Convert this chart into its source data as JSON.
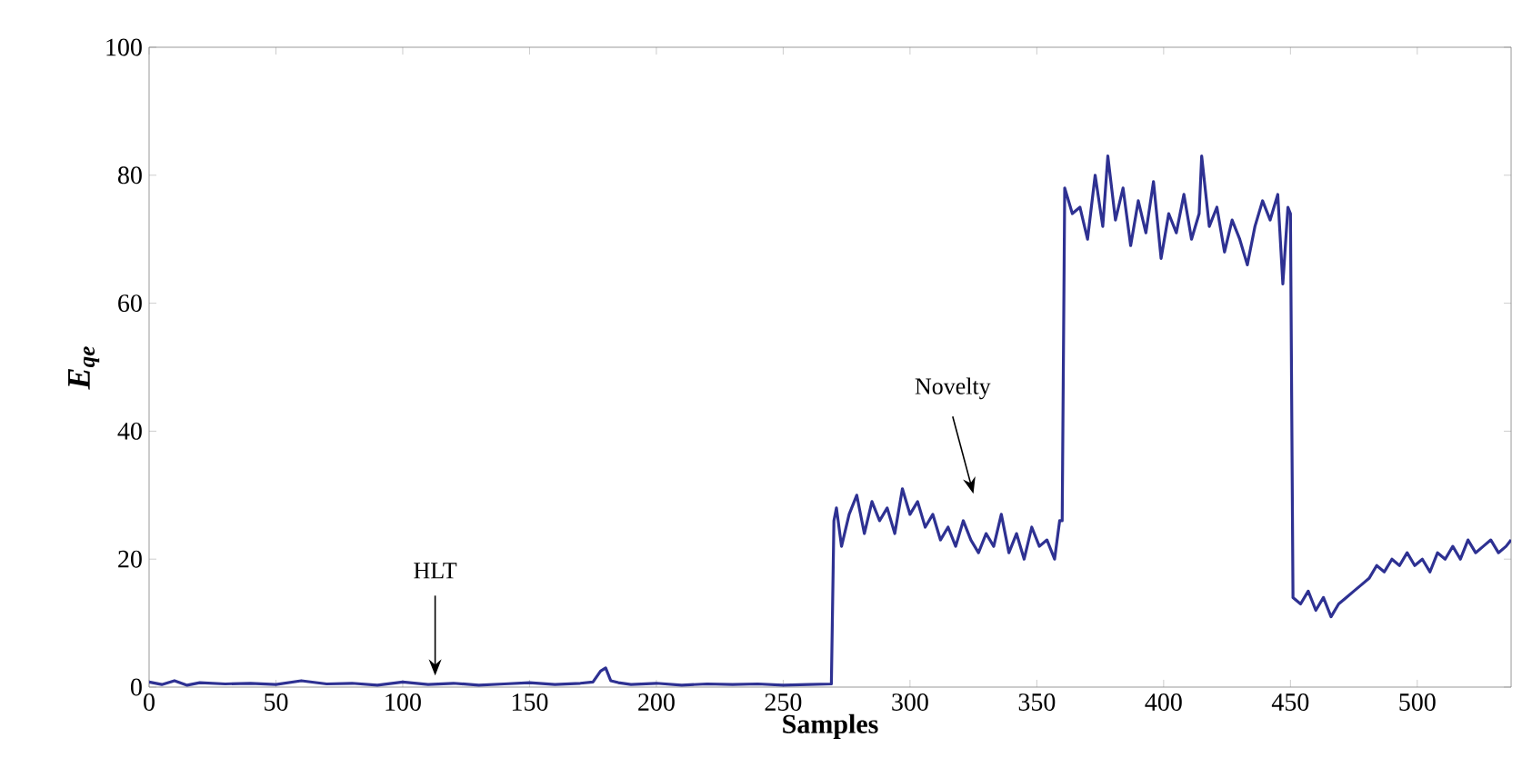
{
  "chart_data": {
    "type": "line",
    "xlabel": "Samples",
    "ylabel": "E$_{qe}$",
    "xlim": [
      0,
      537
    ],
    "ylim": [
      0,
      100
    ],
    "xticks": [
      0,
      50,
      100,
      150,
      200,
      250,
      300,
      350,
      400,
      450,
      500
    ],
    "yticks": [
      0,
      20,
      40,
      60,
      80,
      100
    ],
    "grid": false,
    "annotations": [
      "HLT",
      "Novelty"
    ],
    "series": [
      {
        "color": "#2e3192",
        "x": [
          0,
          5,
          10,
          15,
          20,
          30,
          40,
          50,
          60,
          70,
          80,
          90,
          100,
          110,
          120,
          130,
          140,
          150,
          160,
          170,
          175,
          178,
          180,
          182,
          185,
          190,
          200,
          210,
          220,
          230,
          240,
          250,
          260,
          269,
          270,
          271,
          273,
          276,
          279,
          282,
          285,
          288,
          291,
          294,
          297,
          300,
          303,
          306,
          309,
          312,
          315,
          318,
          321,
          324,
          327,
          330,
          333,
          336,
          339,
          342,
          345,
          348,
          351,
          354,
          357,
          359,
          360,
          361,
          364,
          367,
          370,
          373,
          376,
          378,
          381,
          384,
          387,
          390,
          393,
          396,
          399,
          402,
          405,
          408,
          411,
          414,
          415,
          418,
          421,
          424,
          427,
          430,
          433,
          436,
          439,
          442,
          445,
          447,
          449,
          450,
          451,
          454,
          457,
          460,
          463,
          466,
          469,
          472,
          475,
          478,
          481,
          484,
          487,
          490,
          493,
          496,
          499,
          502,
          505,
          508,
          511,
          514,
          517,
          520,
          523,
          526,
          529,
          532,
          535,
          537
        ],
        "values": [
          0.8,
          0.4,
          1.0,
          0.3,
          0.7,
          0.5,
          0.6,
          0.4,
          1.0,
          0.5,
          0.6,
          0.3,
          0.8,
          0.4,
          0.6,
          0.3,
          0.5,
          0.7,
          0.4,
          0.6,
          0.8,
          2.5,
          3.0,
          1.0,
          0.7,
          0.4,
          0.6,
          0.3,
          0.5,
          0.4,
          0.5,
          0.3,
          0.4,
          0.5,
          26,
          28,
          22,
          27,
          30,
          24,
          29,
          26,
          28,
          24,
          31,
          27,
          29,
          25,
          27,
          23,
          25,
          22,
          26,
          23,
          21,
          24,
          22,
          27,
          21,
          24,
          20,
          25,
          22,
          23,
          20,
          26,
          26,
          78,
          74,
          75,
          70,
          80,
          72,
          83,
          73,
          78,
          69,
          76,
          71,
          79,
          67,
          74,
          71,
          77,
          70,
          74,
          83,
          72,
          75,
          68,
          73,
          70,
          66,
          72,
          76,
          73,
          77,
          63,
          75,
          74,
          14,
          13,
          15,
          12,
          14,
          11,
          13,
          14,
          15,
          16,
          17,
          19,
          18,
          20,
          19,
          21,
          19,
          20,
          18,
          21,
          20,
          22,
          20,
          23,
          21,
          22,
          23,
          21,
          22,
          23
        ]
      }
    ]
  }
}
